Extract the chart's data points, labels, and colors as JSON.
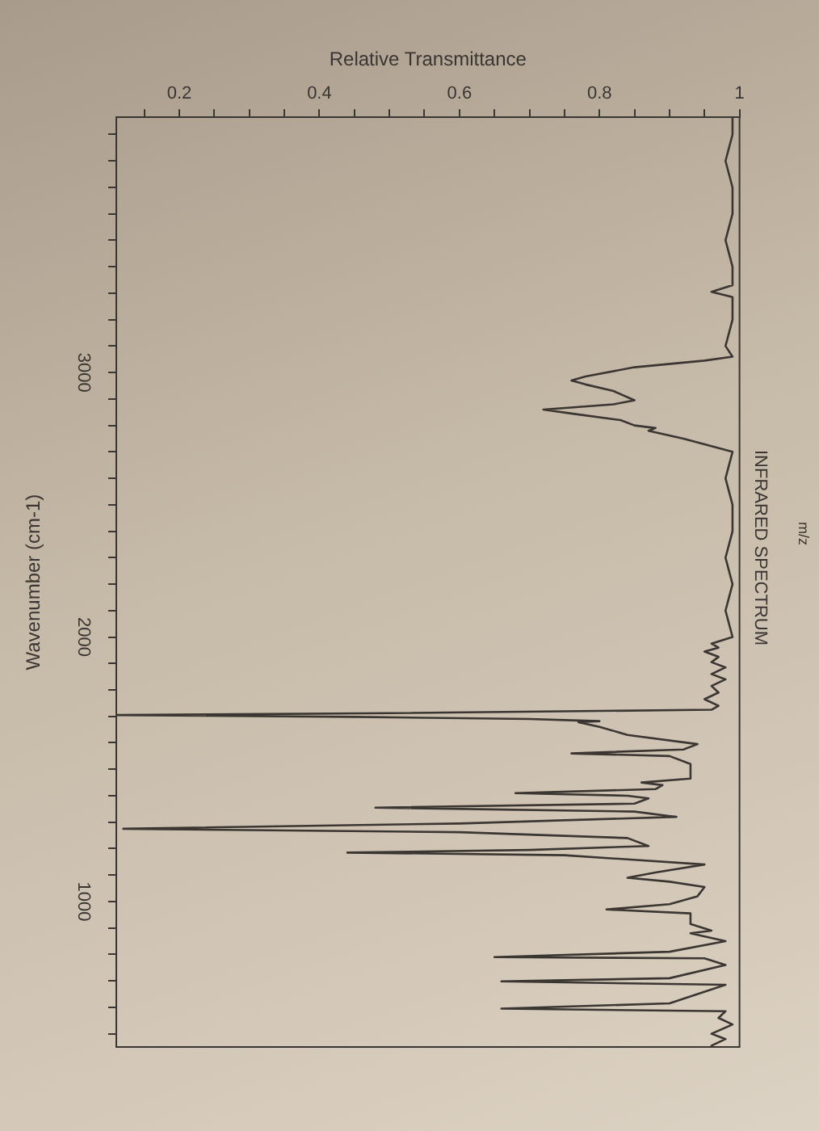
{
  "chart_data": {
    "type": "line",
    "title": "INFRARED SPECTRUM",
    "xlabel": "Relative Transmittance",
    "ylabel": "Wavenumber (cm-1)",
    "annotations": [
      "m/z"
    ],
    "xlim": [
      0.11,
      1
    ],
    "ylim": [
      450,
      3965
    ],
    "xticks": [
      {
        "value": 0.15,
        "label": null
      },
      0.2,
      {
        "value": 0.25,
        "label": null
      },
      {
        "value": 0.3,
        "label": null
      },
      {
        "value": 0.35,
        "label": null
      },
      0.4,
      {
        "value": 0.45,
        "label": null
      },
      {
        "value": 0.5,
        "label": null
      },
      {
        "value": 0.55,
        "label": null
      },
      0.6,
      {
        "value": 0.65,
        "label": null
      },
      {
        "value": 0.7,
        "label": null
      },
      {
        "value": 0.75,
        "label": null
      },
      0.8,
      {
        "value": 0.85,
        "label": null
      },
      {
        "value": 0.9,
        "label": null
      },
      {
        "value": 0.95,
        "label": null
      },
      1
    ],
    "yticks": [
      {
        "value": 500,
        "label": null
      },
      {
        "value": 600,
        "label": null
      },
      {
        "value": 700,
        "label": null
      },
      {
        "value": 800,
        "label": null
      },
      {
        "value": 900,
        "label": null
      },
      1000,
      {
        "value": 1100,
        "label": null
      },
      {
        "value": 1200,
        "label": null
      },
      {
        "value": 1300,
        "label": null
      },
      {
        "value": 1400,
        "label": null
      },
      {
        "value": 1500,
        "label": null
      },
      {
        "value": 1600,
        "label": null
      },
      {
        "value": 1700,
        "label": null
      },
      {
        "value": 1800,
        "label": null
      },
      {
        "value": 1900,
        "label": null
      },
      2000,
      {
        "value": 2100,
        "label": null
      },
      {
        "value": 2200,
        "label": null
      },
      {
        "value": 2300,
        "label": null
      },
      {
        "value": 2400,
        "label": null
      },
      {
        "value": 2500,
        "label": null
      },
      {
        "value": 2600,
        "label": null
      },
      {
        "value": 2700,
        "label": null
      },
      {
        "value": 2800,
        "label": null
      },
      {
        "value": 2900,
        "label": null
      },
      3000,
      {
        "value": 3100,
        "label": null
      },
      {
        "value": 3200,
        "label": null
      },
      {
        "value": 3300,
        "label": null
      },
      {
        "value": 3400,
        "label": null
      },
      {
        "value": 3500,
        "label": null
      },
      {
        "value": 3600,
        "label": null
      },
      {
        "value": 3700,
        "label": null
      },
      {
        "value": 3800,
        "label": null
      },
      {
        "value": 3900,
        "label": null
      }
    ],
    "x": [
      0.99,
      0.99,
      0.98,
      0.99,
      0.99,
      0.98,
      0.99,
      0.99,
      0.96,
      0.99,
      0.99,
      0.98,
      0.99,
      0.95,
      0.85,
      0.78,
      0.76,
      0.78,
      0.82,
      0.85,
      0.82,
      0.72,
      0.76,
      0.83,
      0.85,
      0.88,
      0.87,
      0.92,
      0.99,
      0.98,
      0.99,
      0.99,
      0.98,
      0.99,
      0.98,
      0.99,
      0.96,
      0.97,
      0.95,
      0.97,
      0.96,
      0.98,
      0.96,
      0.98,
      0.96,
      0.97,
      0.95,
      0.97,
      0.96,
      0.5,
      0.11,
      0.45,
      0.7,
      0.76,
      0.8,
      0.77,
      0.8,
      0.84,
      0.94,
      0.92,
      0.76,
      0.9,
      0.93,
      0.93,
      0.86,
      0.89,
      0.88,
      0.68,
      0.84,
      0.87,
      0.85,
      0.48,
      0.85,
      0.91,
      0.6,
      0.12,
      0.6,
      0.84,
      0.87,
      0.7,
      0.44,
      0.75,
      0.95,
      0.88,
      0.84,
      0.9,
      0.95,
      0.94,
      0.9,
      0.81,
      0.93,
      0.93,
      0.96,
      0.93,
      0.98,
      0.9,
      0.65,
      0.95,
      0.98,
      0.9,
      0.66,
      0.98,
      0.9,
      0.66,
      0.98,
      0.97,
      0.99,
      0.96,
      0.98,
      0.96
    ],
    "values": [
      3965,
      3900,
      3800,
      3700,
      3600,
      3500,
      3400,
      3330,
      3305,
      3285,
      3200,
      3100,
      3060,
      3045,
      3020,
      2985,
      2970,
      2955,
      2930,
      2895,
      2880,
      2860,
      2845,
      2820,
      2800,
      2790,
      2780,
      2750,
      2700,
      2600,
      2500,
      2400,
      2300,
      2200,
      2100,
      2000,
      1975,
      1960,
      1945,
      1925,
      1905,
      1885,
      1860,
      1840,
      1815,
      1790,
      1765,
      1740,
      1725,
      1712,
      1705,
      1698,
      1690,
      1685,
      1682,
      1678,
      1660,
      1630,
      1595,
      1575,
      1560,
      1550,
      1520,
      1465,
      1450,
      1440,
      1425,
      1410,
      1400,
      1390,
      1370,
      1355,
      1340,
      1320,
      1295,
      1275,
      1262,
      1240,
      1210,
      1195,
      1185,
      1175,
      1140,
      1110,
      1090,
      1075,
      1055,
      1020,
      990,
      970,
      955,
      915,
      890,
      880,
      850,
      810,
      790,
      785,
      760,
      710,
      698,
      685,
      615,
      595,
      585,
      560,
      535,
      500,
      480,
      455
    ],
    "color": "#3b3631"
  }
}
